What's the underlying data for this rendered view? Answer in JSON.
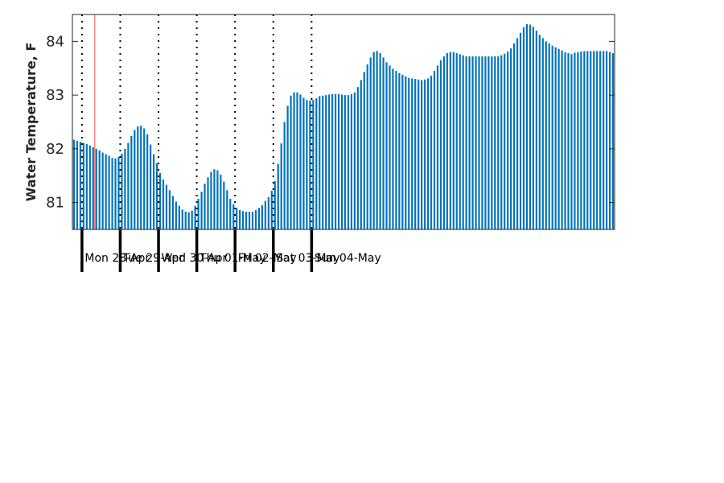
{
  "chart_data": {
    "type": "bar",
    "title": "",
    "xlabel": "",
    "ylabel": "Water Temperature, F",
    "ylim": [
      80.5,
      84.5
    ],
    "yticks": [
      81,
      82,
      83,
      84
    ],
    "x_start": "2025-04-27 19:00",
    "x_step_hours": 2,
    "day_labels": [
      "Mon 28-Apr",
      "Tue 29-Apr",
      "Wed 30-Apr",
      "Thu 01-May",
      "Fri 02-May",
      "Sat 03-May",
      "Sun 04-May"
    ],
    "current_time": "2025-04-28 08:00",
    "grid": false,
    "legend": "none",
    "colors": {
      "bar": "#0072bd",
      "current_time_line": "#ff6b6b",
      "axis": "#262626",
      "day_divider": "#000000"
    },
    "series": [
      {
        "values": [
          82.17,
          82.15,
          82.13,
          82.11,
          82.09,
          82.06,
          82.03,
          82.0,
          81.97,
          81.93,
          81.9,
          81.87,
          81.83,
          81.82,
          81.85,
          81.91,
          82.0,
          82.11,
          82.24,
          82.35,
          82.42,
          82.43,
          82.38,
          82.27,
          82.08,
          81.9,
          81.73,
          81.55,
          81.43,
          81.33,
          81.23,
          81.12,
          81.02,
          80.94,
          80.87,
          80.83,
          80.82,
          80.85,
          80.94,
          81.07,
          81.2,
          81.35,
          81.47,
          81.57,
          81.62,
          81.6,
          81.52,
          81.39,
          81.23,
          81.07,
          80.97,
          80.9,
          80.86,
          80.84,
          80.83,
          80.83,
          80.83,
          80.86,
          80.9,
          80.95,
          81.03,
          81.1,
          81.22,
          81.4,
          81.72,
          82.1,
          82.5,
          82.8,
          82.99,
          83.05,
          83.05,
          83.01,
          82.95,
          82.91,
          82.9,
          82.91,
          82.94,
          82.98,
          82.99,
          83.0,
          83.01,
          83.02,
          83.02,
          83.02,
          83.01,
          83.0,
          83.0,
          83.02,
          83.05,
          83.15,
          83.28,
          83.43,
          83.57,
          83.7,
          83.8,
          83.82,
          83.78,
          83.7,
          83.61,
          83.55,
          83.49,
          83.45,
          83.41,
          83.38,
          83.35,
          83.32,
          83.31,
          83.3,
          83.29,
          83.28,
          83.29,
          83.31,
          83.36,
          83.45,
          83.55,
          83.65,
          83.72,
          83.78,
          83.8,
          83.8,
          83.78,
          83.76,
          83.74,
          83.72,
          83.72,
          83.72,
          83.72,
          83.72,
          83.72,
          83.72,
          83.72,
          83.72,
          83.72,
          83.72,
          83.74,
          83.77,
          83.81,
          83.87,
          83.96,
          84.06,
          84.16,
          84.26,
          84.32,
          84.31,
          84.27,
          84.2,
          84.12,
          84.06,
          84.0,
          83.96,
          83.92,
          83.89,
          83.86,
          83.83,
          83.8,
          83.78,
          83.76,
          83.79,
          83.8,
          83.81,
          83.82,
          83.82,
          83.82,
          83.82,
          83.82,
          83.82,
          83.82,
          83.82,
          83.8,
          83.78
        ]
      }
    ]
  }
}
